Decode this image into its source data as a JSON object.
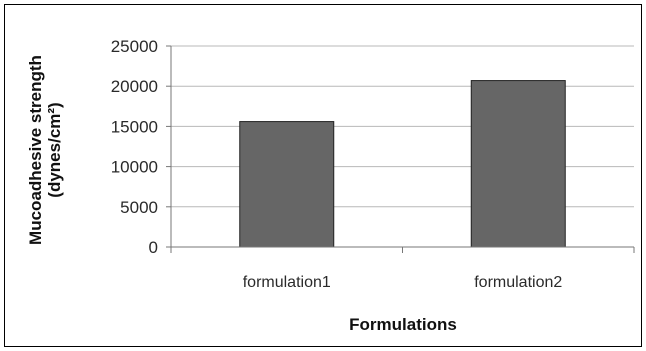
{
  "chart_data": {
    "type": "bar",
    "categories": [
      "formulation1",
      "formulation2"
    ],
    "values": [
      15600,
      20700
    ],
    "xlabel": "Formulations",
    "ylabel_line1": "Mucoadhesive strength",
    "ylabel_line2": "(dynes/cm²)",
    "ylim": [
      0,
      25000
    ],
    "yticks": [
      0,
      5000,
      10000,
      15000,
      20000,
      25000
    ],
    "ytick_labels": [
      "0",
      "5000",
      "10000",
      "15000",
      "20000",
      "25000"
    ],
    "grid": true,
    "legend": "none",
    "bar_color": "#666666"
  }
}
